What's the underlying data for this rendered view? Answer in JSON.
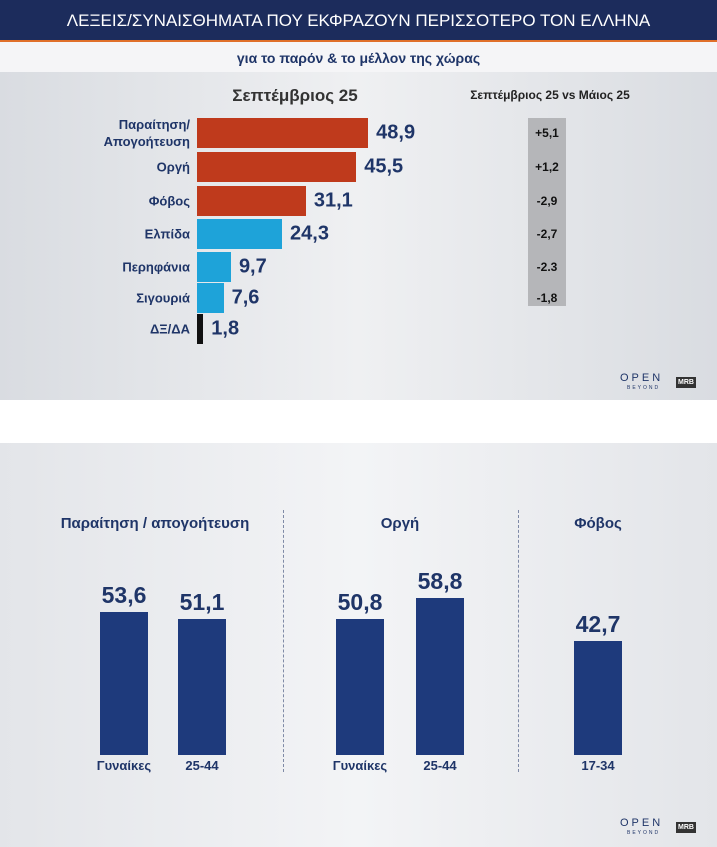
{
  "logos": [
    "OPEN",
    "BEYOND",
    "MRB"
  ],
  "chart_data": [
    {
      "type": "bar",
      "orientation": "horizontal",
      "title": "ΛΕΞΕΙΣ/ΣΥΝΑΙΣΘΗΜΑΤΑ ΠΟΥ ΕΚΦΡΑΖΟΥΝ ΠΕΡΙΣΣΟΤΕΡΟ ΤΟΝ ΕΛΛΗΝΑ",
      "subtitle": "για το παρόν & το μέλλον της χώρας",
      "series_label": "Σεπτέμβριος 25",
      "categories": [
        "Παραίτηση/\nΑπογοήτευση",
        "Οργή",
        "Φόβος",
        "Ελπίδα",
        "Περηφάνια",
        "Σιγουριά",
        "ΔΞ/ΔΑ"
      ],
      "values": [
        48.9,
        45.5,
        31.1,
        24.3,
        9.7,
        7.6,
        1.8
      ],
      "value_labels": [
        "48,9",
        "45,5",
        "31,1",
        "24,3",
        "9,7",
        "7,6",
        "1,8"
      ],
      "colors": [
        "#bf3a1c",
        "#bf3a1c",
        "#bf3a1c",
        "#1ea3d9",
        "#1ea3d9",
        "#1ea3d9",
        "#111111"
      ],
      "change": {
        "title": "Σεπτέμβριος 25 vs Μάιος 25",
        "values": [
          5.1,
          1.2,
          -2.9,
          -2.7,
          -2.3,
          -1.8
        ],
        "value_labels": [
          "+5,1",
          "+1,2",
          "-2,9",
          "-2,7",
          "-2.3",
          "-1,8"
        ]
      }
    },
    {
      "type": "grouped-bar",
      "color": "#1e3a7c",
      "groups": [
        {
          "name": "Παραίτηση / απογοήτευση",
          "categories": [
            "Γυναίκες",
            "25-44"
          ],
          "values": [
            53.6,
            51.1
          ],
          "value_labels": [
            "53,6",
            "51,1"
          ]
        },
        {
          "name": "Οργή",
          "categories": [
            "Γυναίκες",
            "25-44"
          ],
          "values": [
            50.8,
            58.8
          ],
          "value_labels": [
            "50,8",
            "58,8"
          ]
        },
        {
          "name": "Φόβος",
          "categories": [
            "17-34"
          ],
          "values": [
            42.7
          ],
          "value_labels": [
            "42,7"
          ]
        }
      ]
    }
  ]
}
